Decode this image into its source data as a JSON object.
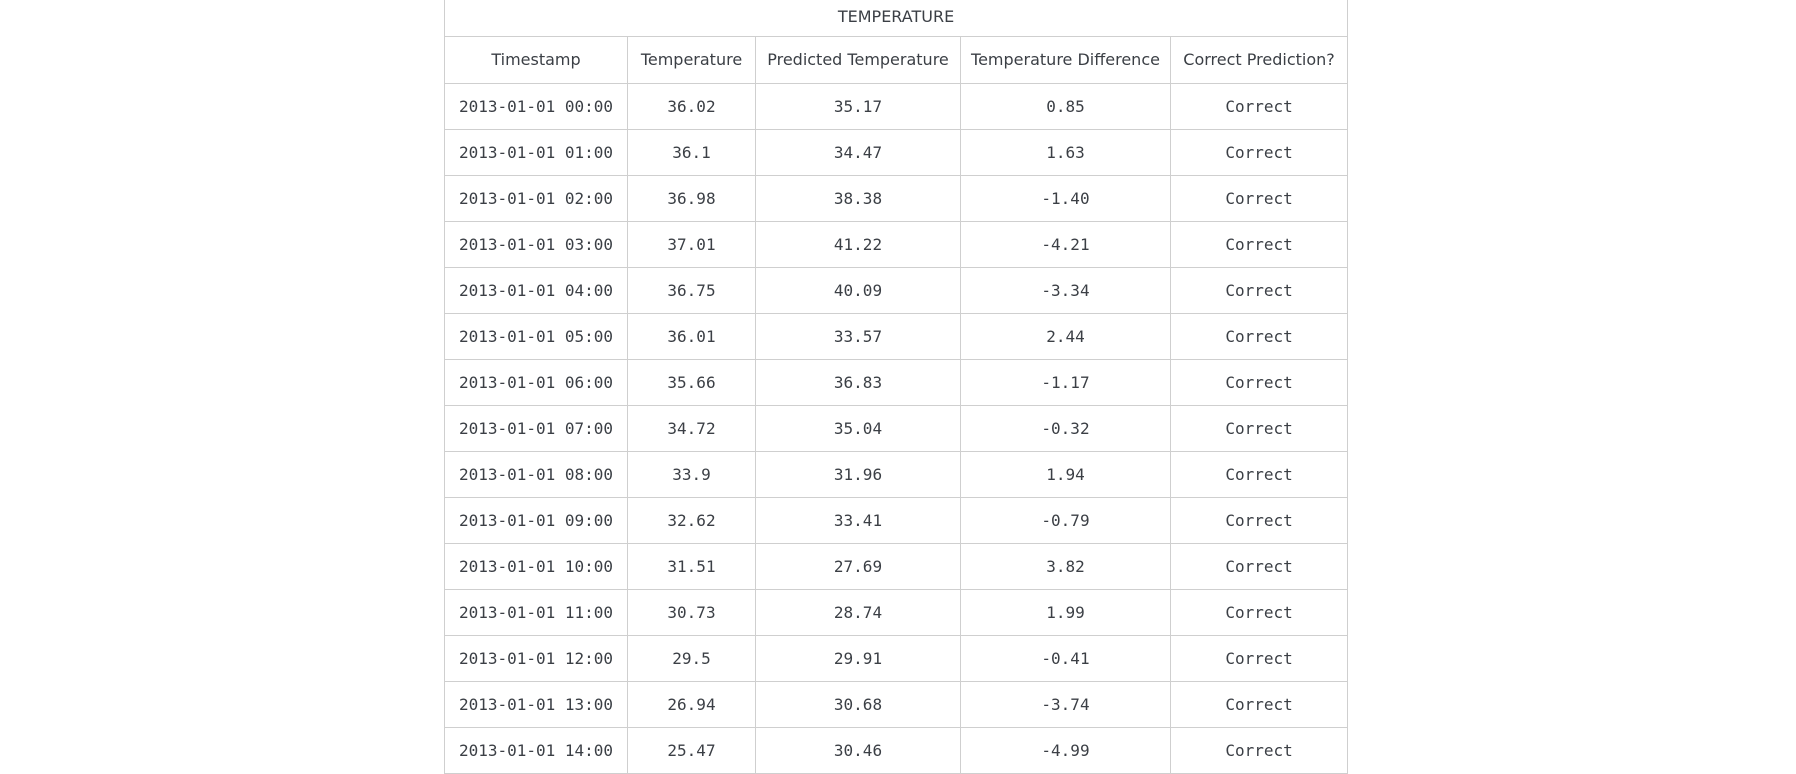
{
  "table": {
    "caption": "TEMPERATURE",
    "columns": [
      "Timestamp",
      "Temperature",
      "Predicted Temperature",
      "Temperature Difference",
      "Correct Prediction?"
    ],
    "rows": [
      [
        "2013-01-01 00:00",
        "36.02",
        "35.17",
        "0.85",
        "Correct"
      ],
      [
        "2013-01-01 01:00",
        "36.1",
        "34.47",
        "1.63",
        "Correct"
      ],
      [
        "2013-01-01 02:00",
        "36.98",
        "38.38",
        "-1.40",
        "Correct"
      ],
      [
        "2013-01-01 03:00",
        "37.01",
        "41.22",
        "-4.21",
        "Correct"
      ],
      [
        "2013-01-01 04:00",
        "36.75",
        "40.09",
        "-3.34",
        "Correct"
      ],
      [
        "2013-01-01 05:00",
        "36.01",
        "33.57",
        "2.44",
        "Correct"
      ],
      [
        "2013-01-01 06:00",
        "35.66",
        "36.83",
        "-1.17",
        "Correct"
      ],
      [
        "2013-01-01 07:00",
        "34.72",
        "35.04",
        "-0.32",
        "Correct"
      ],
      [
        "2013-01-01 08:00",
        "33.9",
        "31.96",
        "1.94",
        "Correct"
      ],
      [
        "2013-01-01 09:00",
        "32.62",
        "33.41",
        "-0.79",
        "Correct"
      ],
      [
        "2013-01-01 10:00",
        "31.51",
        "27.69",
        "3.82",
        "Correct"
      ],
      [
        "2013-01-01 11:00",
        "30.73",
        "28.74",
        "1.99",
        "Correct"
      ],
      [
        "2013-01-01 12:00",
        "29.5",
        "29.91",
        "-0.41",
        "Correct"
      ],
      [
        "2013-01-01 13:00",
        "26.94",
        "30.68",
        "-3.74",
        "Correct"
      ],
      [
        "2013-01-01 14:00",
        "25.47",
        "30.46",
        "-4.99",
        "Correct"
      ]
    ]
  }
}
